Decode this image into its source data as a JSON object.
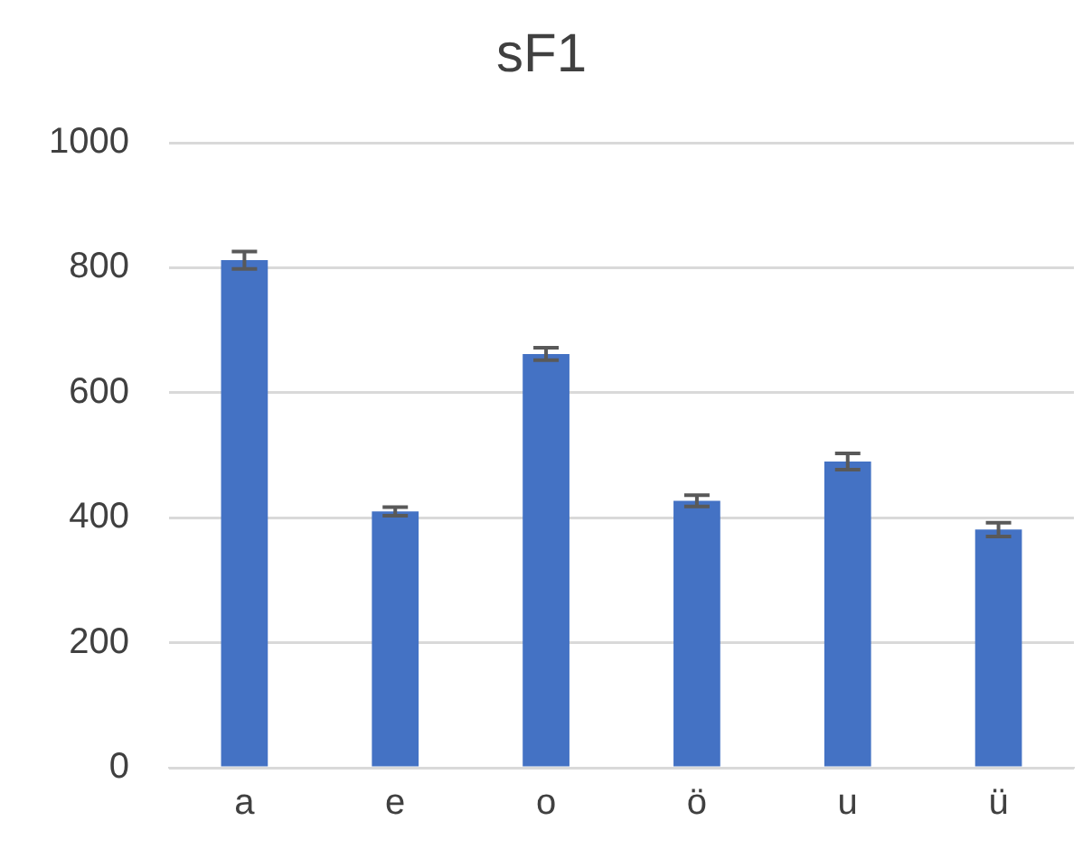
{
  "chart_data": {
    "type": "bar",
    "title": "sF1",
    "categories": [
      "a",
      "e",
      "o",
      "ö",
      "u",
      "ü"
    ],
    "values": [
      812,
      410,
      662,
      427,
      490,
      381
    ],
    "errors": [
      14,
      7,
      10,
      9,
      13,
      11
    ],
    "color": "#4472c4",
    "ylim": [
      0,
      1000
    ],
    "yticks": [
      0,
      200,
      400,
      600,
      800,
      1000
    ],
    "grid": "y",
    "legend": false
  }
}
